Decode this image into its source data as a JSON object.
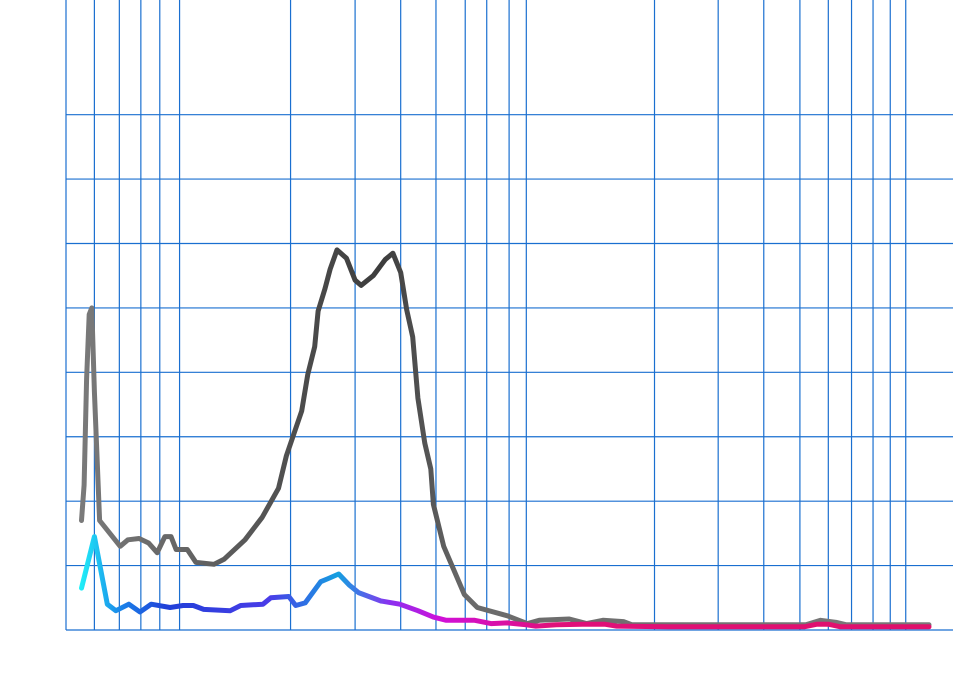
{
  "chart_data": {
    "type": "line",
    "title": "",
    "xlabel": "",
    "ylabel": "",
    "grid": true,
    "legend": "none",
    "xlim": [
      0,
      100
    ],
    "ylim": [
      0,
      8
    ],
    "x_gridlines": [
      3.3,
      6.2,
      8.7,
      10.9,
      13.2,
      26.1,
      33.6,
      38.9,
      43,
      46.4,
      48.9,
      51.5,
      53.5,
      68.4,
      75.8,
      81.1,
      85.3,
      88.6,
      91.3,
      93.8,
      95.8,
      97.6
    ],
    "y_gridlines": [
      1,
      2,
      3,
      4,
      5,
      6,
      7,
      8
    ],
    "series": [
      {
        "name": "",
        "color_start": "#777777",
        "color_peak": "#3a3a3a",
        "points": [
          [
            1.8,
            1.7
          ],
          [
            2.1,
            2.25
          ],
          [
            2.4,
            3.9
          ],
          [
            2.7,
            4.9
          ],
          [
            3.0,
            5.0
          ],
          [
            3.3,
            3.7
          ],
          [
            3.9,
            1.7
          ],
          [
            6.3,
            1.3
          ],
          [
            7.2,
            1.4
          ],
          [
            8.5,
            1.42
          ],
          [
            9.6,
            1.35
          ],
          [
            10.6,
            1.2
          ],
          [
            11.5,
            1.45
          ],
          [
            12.2,
            1.45
          ],
          [
            12.8,
            1.25
          ],
          [
            14.1,
            1.25
          ],
          [
            15.1,
            1.05
          ],
          [
            17.2,
            1.02
          ],
          [
            18.4,
            1.1
          ],
          [
            20.8,
            1.4
          ],
          [
            22.8,
            1.75
          ],
          [
            24.7,
            2.2
          ],
          [
            25.6,
            2.7
          ],
          [
            26.5,
            3.05
          ],
          [
            27.4,
            3.4
          ],
          [
            28.1,
            3.97
          ],
          [
            28.9,
            4.4
          ],
          [
            29.3,
            4.95
          ],
          [
            30.1,
            5.3
          ],
          [
            30.7,
            5.6
          ],
          [
            31.5,
            5.9
          ],
          [
            32.6,
            5.77
          ],
          [
            33.6,
            5.43
          ],
          [
            34.3,
            5.35
          ],
          [
            35.7,
            5.5
          ],
          [
            37.1,
            5.75
          ],
          [
            38.0,
            5.85
          ],
          [
            38.9,
            5.55
          ],
          [
            39.6,
            4.97
          ],
          [
            40.3,
            4.55
          ],
          [
            40.9,
            3.6
          ],
          [
            41.7,
            2.9
          ],
          [
            42.4,
            2.5
          ],
          [
            42.7,
            1.95
          ],
          [
            43.9,
            1.3
          ],
          [
            46.3,
            0.55
          ],
          [
            47.8,
            0.35
          ],
          [
            51.3,
            0.22
          ],
          [
            53.6,
            0.1
          ],
          [
            55.0,
            0.15
          ],
          [
            58.5,
            0.17
          ],
          [
            60.5,
            0.1
          ],
          [
            62.4,
            0.15
          ],
          [
            64.8,
            0.13
          ],
          [
            65.8,
            0.08
          ],
          [
            70,
            0.08
          ],
          [
            80,
            0.08
          ],
          [
            86.0,
            0.08
          ],
          [
            87.7,
            0.15
          ],
          [
            89.5,
            0.12
          ],
          [
            90.7,
            0.08
          ],
          [
            95,
            0.08
          ],
          [
            100.3,
            0.08
          ]
        ]
      },
      {
        "name": "",
        "color_start": "#20f0f8",
        "color_mid": "#7a3cf0",
        "color_end": "#e0106a",
        "points": [
          [
            1.8,
            0.65
          ],
          [
            3.3,
            1.45
          ],
          [
            4.8,
            0.4
          ],
          [
            5.8,
            0.3
          ],
          [
            7.3,
            0.4
          ],
          [
            8.6,
            0.28
          ],
          [
            9.9,
            0.4
          ],
          [
            12.1,
            0.35
          ],
          [
            13.6,
            0.38
          ],
          [
            14.8,
            0.38
          ],
          [
            16.0,
            0.32
          ],
          [
            19.1,
            0.3
          ],
          [
            20.3,
            0.38
          ],
          [
            22.9,
            0.4
          ],
          [
            23.8,
            0.5
          ],
          [
            25.9,
            0.52
          ],
          [
            26.7,
            0.38
          ],
          [
            27.8,
            0.42
          ],
          [
            29.6,
            0.75
          ],
          [
            30.5,
            0.8
          ],
          [
            31.7,
            0.87
          ],
          [
            32.9,
            0.7
          ],
          [
            34.0,
            0.58
          ],
          [
            36.6,
            0.45
          ],
          [
            38.8,
            0.4
          ],
          [
            40.9,
            0.3
          ],
          [
            42.7,
            0.2
          ],
          [
            44.2,
            0.15
          ],
          [
            47.5,
            0.15
          ],
          [
            49.4,
            0.1
          ],
          [
            51.3,
            0.11
          ],
          [
            53.5,
            0.08
          ],
          [
            54.6,
            0.06
          ],
          [
            57,
            0.08
          ],
          [
            60,
            0.09
          ],
          [
            62.6,
            0.09
          ],
          [
            64,
            0.06
          ],
          [
            70,
            0.05
          ],
          [
            85.8,
            0.05
          ],
          [
            87.3,
            0.09
          ],
          [
            88.6,
            0.09
          ],
          [
            90,
            0.05
          ],
          [
            95,
            0.05
          ],
          [
            100.3,
            0.05
          ]
        ]
      }
    ]
  }
}
